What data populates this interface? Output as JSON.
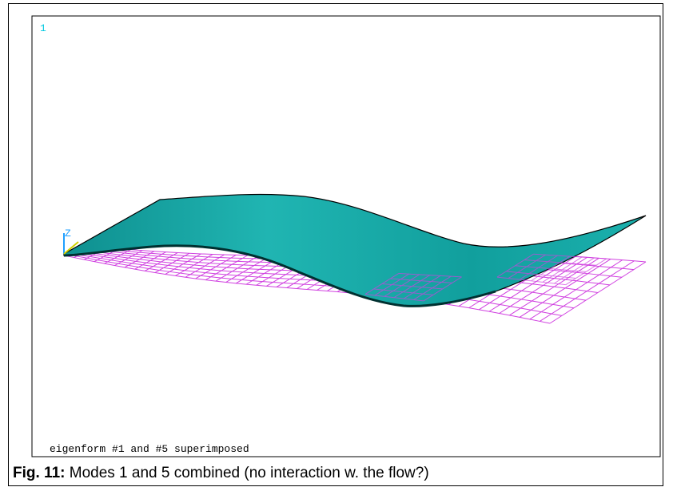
{
  "figure": {
    "viewport_number": "1",
    "axis_label": "Z",
    "annotation": "eigenform #1 and #5 superimposed"
  },
  "caption": {
    "label": "Fig. 11:",
    "text": "Modes 1 and 5 combined (no interaction w. the flow?)"
  }
}
